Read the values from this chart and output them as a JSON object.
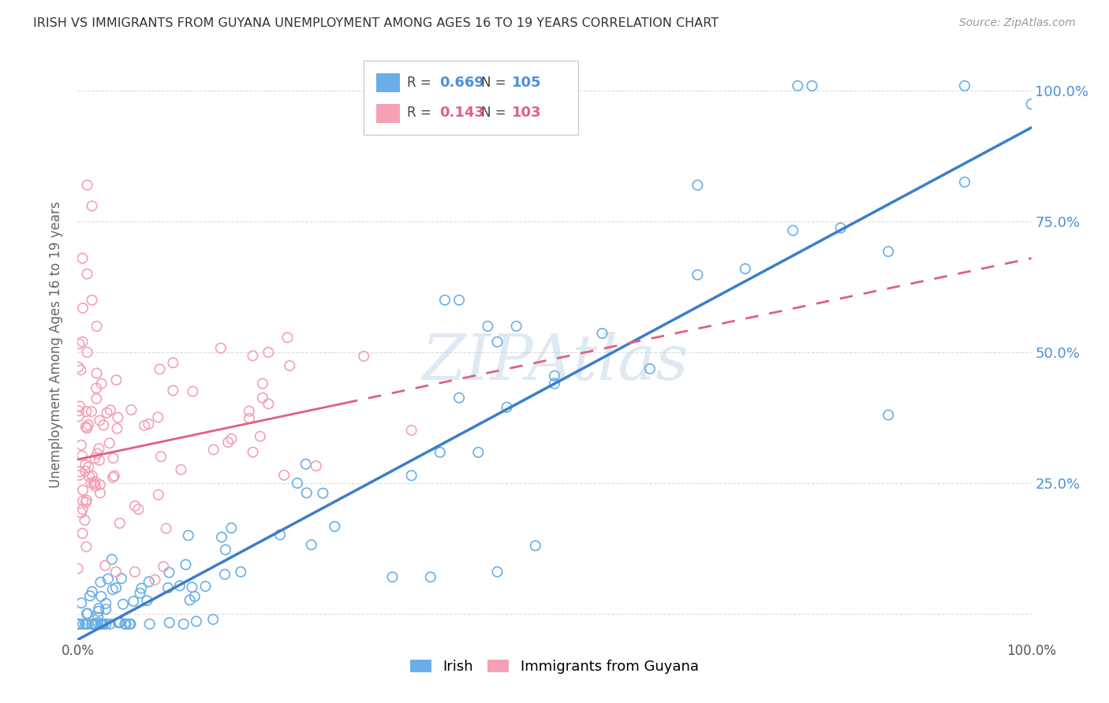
{
  "title": "IRISH VS IMMIGRANTS FROM GUYANA UNEMPLOYMENT AMONG AGES 16 TO 19 YEARS CORRELATION CHART",
  "source": "Source: ZipAtlas.com",
  "ylabel": "Unemployment Among Ages 16 to 19 years",
  "ytick_labels": [
    "",
    "25.0%",
    "50.0%",
    "75.0%",
    "100.0%"
  ],
  "ytick_values": [
    0.0,
    0.25,
    0.5,
    0.75,
    1.0
  ],
  "xlim": [
    0.0,
    1.0
  ],
  "ylim": [
    -0.05,
    1.08
  ],
  "irish_color": "#6aaee8",
  "guyana_color": "#f4a0b5",
  "irish_line_color": "#3a7ec8",
  "guyana_line_color": "#e06080",
  "watermark": "ZIPAtlas",
  "legend_R_irish": "0.669",
  "legend_N_irish": "105",
  "legend_R_guyana": "0.143",
  "legend_N_guyana": "103",
  "background_color": "#ffffff",
  "grid_color": "#dddddd",
  "title_color": "#333333",
  "axis_label_color": "#666666",
  "tick_color_right": "#4a90d9",
  "legend_value_color": "#4a90d9",
  "legend_N_color": "#e06080"
}
